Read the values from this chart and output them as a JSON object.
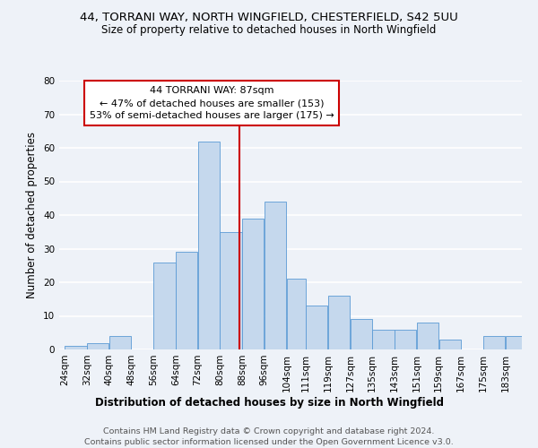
{
  "title1": "44, TORRANI WAY, NORTH WINGFIELD, CHESTERFIELD, S42 5UU",
  "title2": "Size of property relative to detached houses in North Wingfield",
  "xlabel": "Distribution of detached houses by size in North Wingfield",
  "ylabel": "Number of detached properties",
  "footer1": "Contains HM Land Registry data © Crown copyright and database right 2024.",
  "footer2": "Contains public sector information licensed under the Open Government Licence v3.0.",
  "annotation_line1": "44 TORRANI WAY: 87sqm",
  "annotation_line2": "← 47% of detached houses are smaller (153)",
  "annotation_line3": "53% of semi-detached houses are larger (175) →",
  "bar_color": "#c5d8ed",
  "bar_edge_color": "#5b9bd5",
  "marker_value": 87,
  "categories": [
    "24sqm",
    "32sqm",
    "40sqm",
    "48sqm",
    "56sqm",
    "64sqm",
    "72sqm",
    "80sqm",
    "88sqm",
    "96sqm",
    "104sqm",
    "111sqm",
    "119sqm",
    "127sqm",
    "135sqm",
    "143sqm",
    "151sqm",
    "159sqm",
    "167sqm",
    "175sqm",
    "183sqm"
  ],
  "bin_edges": [
    24,
    32,
    40,
    48,
    56,
    64,
    72,
    80,
    88,
    96,
    104,
    111,
    119,
    127,
    135,
    143,
    151,
    159,
    167,
    175,
    183,
    191
  ],
  "values": [
    1,
    2,
    4,
    0,
    26,
    29,
    62,
    35,
    39,
    44,
    21,
    13,
    16,
    9,
    6,
    6,
    8,
    3,
    0,
    4,
    4
  ],
  "ylim": [
    0,
    80
  ],
  "yticks": [
    0,
    10,
    20,
    30,
    40,
    50,
    60,
    70,
    80
  ],
  "bg_color": "#eef2f8",
  "grid_color": "#ffffff",
  "annotation_box_color": "#ffffff",
  "annotation_box_edge": "#cc0000",
  "vline_color": "#cc0000",
  "title_fontsize": 9.5,
  "subtitle_fontsize": 8.5,
  "axis_label_fontsize": 8.5,
  "tick_fontsize": 7.5,
  "annotation_fontsize": 8.0,
  "footer_fontsize": 6.8
}
